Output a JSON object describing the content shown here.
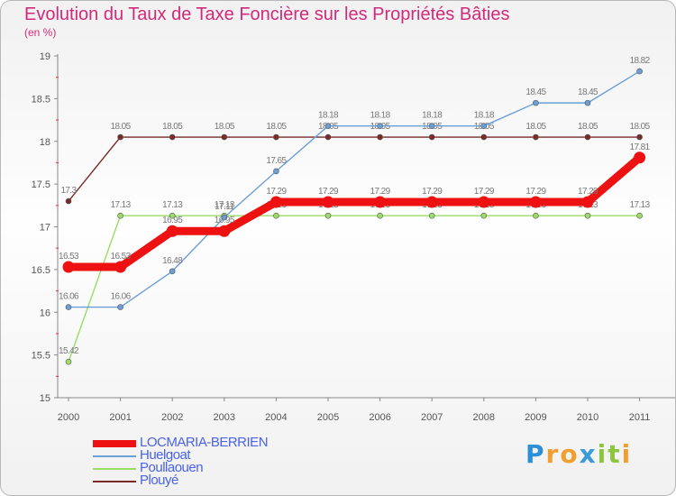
{
  "chart_data": {
    "type": "line",
    "title": "Evolution du Taux de Taxe Foncière sur les Propriétés Bâties",
    "ylabel": "(en %)",
    "xlabel": "",
    "categories": [
      "2000",
      "2001",
      "2002",
      "2003",
      "2004",
      "2005",
      "2006",
      "2007",
      "2008",
      "2009",
      "2010",
      "2011"
    ],
    "ylim": [
      15,
      19
    ],
    "yticks": [
      "19",
      "18.5",
      "18",
      "17.5",
      "17",
      "16.5",
      "16",
      "15.5",
      "15"
    ],
    "grid": false,
    "series": [
      {
        "name": "Plouyé",
        "color": "#7b2a2a",
        "values": [
          17.3,
          18.05,
          18.05,
          18.05,
          18.05,
          18.05,
          18.05,
          18.05,
          18.05,
          18.05,
          18.05,
          18.05
        ],
        "labels": [
          "17.3",
          "18.05",
          "18.05",
          "18.05",
          "18.05",
          "18.05",
          "18.05",
          "18.05",
          "18.05",
          "18.05",
          "18.05",
          "18.05"
        ]
      },
      {
        "name": "Poullaouen",
        "color": "#99dd66",
        "values": [
          15.42,
          17.13,
          17.13,
          17.13,
          17.13,
          17.13,
          17.13,
          17.13,
          17.13,
          17.13,
          17.13,
          17.13
        ],
        "labels": [
          "15.42",
          "17.13",
          "17.13",
          "17.13",
          "17.13",
          "17.13",
          "17.13",
          "17.13",
          "17.13",
          "17.13",
          "17.13",
          "17.13"
        ]
      },
      {
        "name": "Huelgoat",
        "color": "#6a9fd8",
        "values": [
          16.06,
          16.06,
          16.48,
          17.11,
          17.65,
          18.18,
          18.18,
          18.18,
          18.18,
          18.45,
          18.45,
          18.82
        ],
        "labels": [
          "16.06",
          "16.06",
          "16.48",
          "17.11",
          "17.65",
          "18.18",
          "18.18",
          "18.18",
          "18.18",
          "18.45",
          "18.45",
          "18.82"
        ]
      },
      {
        "name": "LOCMARIA-BERRIEN",
        "color": "#ee1111",
        "values": [
          16.53,
          16.53,
          16.95,
          16.95,
          17.29,
          17.29,
          17.29,
          17.29,
          17.29,
          17.29,
          17.29,
          17.81
        ],
        "labels": [
          "16.53",
          "16.53",
          "16.95",
          "16.95",
          "17.29",
          "17.29",
          "17.29",
          "17.29",
          "17.29",
          "17.29",
          "17.29",
          "17.81"
        ]
      }
    ],
    "legend_position": "bottom-left"
  },
  "legend": [
    {
      "label": "LOCMARIA-BERRIEN",
      "color": "#ee1111"
    },
    {
      "label": "Huelgoat",
      "color": "#6a9fd8"
    },
    {
      "label": "Poullaouen",
      "color": "#99dd66"
    },
    {
      "label": "Plouyé",
      "color": "#7b2a2a"
    }
  ],
  "logo": {
    "letters": [
      "P",
      "r",
      "o",
      "x",
      "i",
      "t",
      "i"
    ],
    "colors": [
      "#2d8fd8",
      "#f0a030",
      "#f0a030",
      "#3a9bd8",
      "#8cc63f",
      "#8cc63f",
      "#f0a030"
    ]
  }
}
